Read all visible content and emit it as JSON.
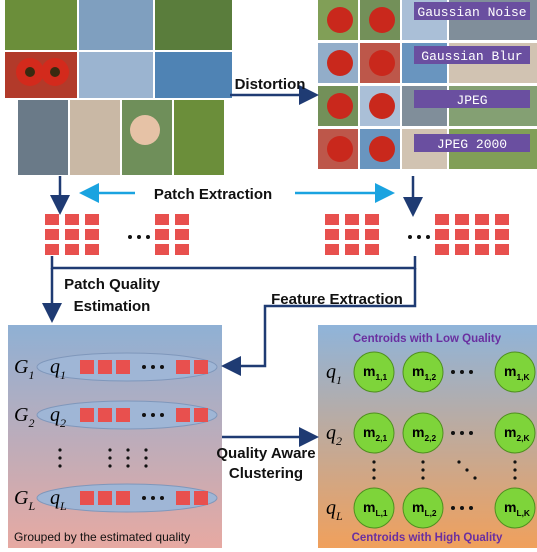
{
  "distortion_label": "Distortion",
  "distortions": [
    "Gaussian Noise",
    "Gaussian Blur",
    "JPEG",
    "JPEG 2000"
  ],
  "patch_extraction": "Patch Extraction",
  "patch_quality_estimation": [
    "Patch Quality",
    "Estimation"
  ],
  "feature_extraction": "Feature Extraction",
  "quality_aware_clustering": [
    "Quality Aware",
    "Clustering"
  ],
  "left_panel": {
    "caption": "Grouped by the estimated quality",
    "rows": [
      {
        "group": "G",
        "group_index": "1",
        "quality": "q",
        "quality_index": "1"
      },
      {
        "group": "G",
        "group_index": "2",
        "quality": "q",
        "quality_index": "2"
      },
      {
        "group": "G",
        "group_index": "L",
        "quality": "q",
        "quality_index": "L"
      }
    ]
  },
  "right_panel": {
    "top_caption": "Centroids with Low Quality",
    "bottom_caption": "Centroids with High Quality",
    "rows": [
      {
        "quality": "q",
        "quality_index": "1",
        "centroids": [
          {
            "symbol": "m",
            "index": "1,1"
          },
          {
            "symbol": "m",
            "index": "1,2"
          },
          {
            "symbol": "m",
            "index": "1,K"
          }
        ]
      },
      {
        "quality": "q",
        "quality_index": "2",
        "centroids": [
          {
            "symbol": "m",
            "index": "2,1"
          },
          {
            "symbol": "m",
            "index": "2,2"
          },
          {
            "symbol": "m",
            "index": "2,K"
          }
        ]
      },
      {
        "quality": "q",
        "quality_index": "L",
        "centroids": [
          {
            "symbol": "m",
            "index": "L,1"
          },
          {
            "symbol": "m",
            "index": "L,2"
          },
          {
            "symbol": "m",
            "index": "L,K"
          }
        ]
      }
    ]
  }
}
